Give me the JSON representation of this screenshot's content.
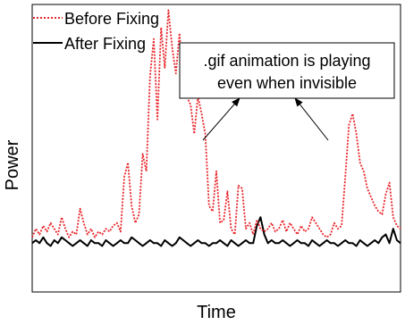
{
  "chart_data": {
    "type": "line",
    "title": "",
    "xlabel": "Time",
    "ylabel": "Power",
    "xlim": [
      0,
      100
    ],
    "ylim": [
      0,
      100
    ],
    "grid": false,
    "legend_placement": "top-left",
    "annotation": {
      "text_line1": ".gif animation is playing",
      "text_line2": "even when invisible",
      "arrow_targets": [
        [
          46,
          58
        ],
        [
          76,
          60
        ]
      ]
    },
    "series": [
      {
        "name": "Before Fixing",
        "style": "dotted",
        "color": "#e8262b",
        "x": [
          0,
          1,
          2,
          3,
          4,
          5,
          6,
          7,
          8,
          9,
          10,
          11,
          12,
          13,
          14,
          15,
          16,
          17,
          18,
          19,
          20,
          21,
          22,
          23,
          24,
          25,
          26,
          27,
          28,
          29,
          30,
          31,
          32,
          33,
          34,
          35,
          36,
          37,
          38,
          39,
          40,
          41,
          42,
          43,
          44,
          45,
          46,
          47,
          48,
          49,
          50,
          51,
          52,
          53,
          54,
          55,
          56,
          57,
          58,
          59,
          60,
          61,
          62,
          63,
          64,
          65,
          66,
          67,
          68,
          69,
          70,
          71,
          72,
          73,
          74,
          75,
          76,
          77,
          78,
          79,
          80,
          81,
          82,
          83,
          84,
          85,
          86,
          87,
          88,
          89,
          90,
          91,
          92,
          93,
          94,
          95,
          96,
          97,
          98,
          99,
          100
        ],
        "y": [
          19,
          22,
          20,
          23,
          21,
          24,
          22,
          20,
          26,
          22,
          19,
          21,
          20,
          29,
          24,
          20,
          22,
          19,
          21,
          20,
          22,
          21,
          23,
          24,
          21,
          40,
          45,
          30,
          24,
          27,
          48,
          42,
          75,
          88,
          60,
          92,
          78,
          98,
          85,
          76,
          90,
          70,
          68,
          65,
          55,
          68,
          62,
          55,
          30,
          28,
          42,
          24,
          25,
          35,
          22,
          20,
          37,
          36,
          22,
          24,
          20,
          25,
          22,
          21,
          22,
          24,
          21,
          22,
          25,
          21,
          24,
          22,
          20,
          23,
          21,
          22,
          26,
          24,
          22,
          20,
          19,
          20,
          24,
          22,
          23,
          40,
          58,
          62,
          55,
          45,
          42,
          36,
          33,
          30,
          28,
          27,
          34,
          38,
          26,
          23,
          22
        ]
      },
      {
        "name": "After Fixing",
        "style": "solid",
        "color": "#000000",
        "x": [
          0,
          1,
          2,
          3,
          4,
          5,
          6,
          7,
          8,
          9,
          10,
          11,
          12,
          13,
          14,
          15,
          16,
          17,
          18,
          19,
          20,
          21,
          22,
          23,
          24,
          25,
          26,
          27,
          28,
          29,
          30,
          31,
          32,
          33,
          34,
          35,
          36,
          37,
          38,
          39,
          40,
          41,
          42,
          43,
          44,
          45,
          46,
          47,
          48,
          49,
          50,
          51,
          52,
          53,
          54,
          55,
          56,
          57,
          58,
          59,
          60,
          61,
          62,
          63,
          64,
          65,
          66,
          67,
          68,
          69,
          70,
          71,
          72,
          73,
          74,
          75,
          76,
          77,
          78,
          79,
          80,
          81,
          82,
          83,
          84,
          85,
          86,
          87,
          88,
          89,
          90,
          91,
          92,
          93,
          94,
          95,
          96,
          97,
          98,
          99,
          100
        ],
        "y": [
          17,
          18,
          17,
          19,
          17,
          16,
          18,
          17,
          19,
          18,
          17,
          16,
          17,
          18,
          17,
          16,
          18,
          17,
          17,
          16,
          18,
          17,
          16,
          17,
          18,
          17,
          17,
          19,
          18,
          17,
          16,
          17,
          18,
          17,
          17,
          16,
          18,
          17,
          16,
          17,
          19,
          18,
          17,
          16,
          17,
          18,
          17,
          17,
          16,
          17,
          17,
          18,
          17,
          16,
          18,
          17,
          16,
          17,
          18,
          17,
          17,
          23,
          26,
          20,
          17,
          18,
          17,
          17,
          18,
          17,
          16,
          17,
          18,
          17,
          17,
          16,
          18,
          17,
          16,
          17,
          18,
          17,
          17,
          16,
          17,
          18,
          17,
          17,
          16,
          18,
          17,
          16,
          17,
          18,
          17,
          19,
          20,
          17,
          22,
          18,
          17
        ]
      }
    ]
  }
}
